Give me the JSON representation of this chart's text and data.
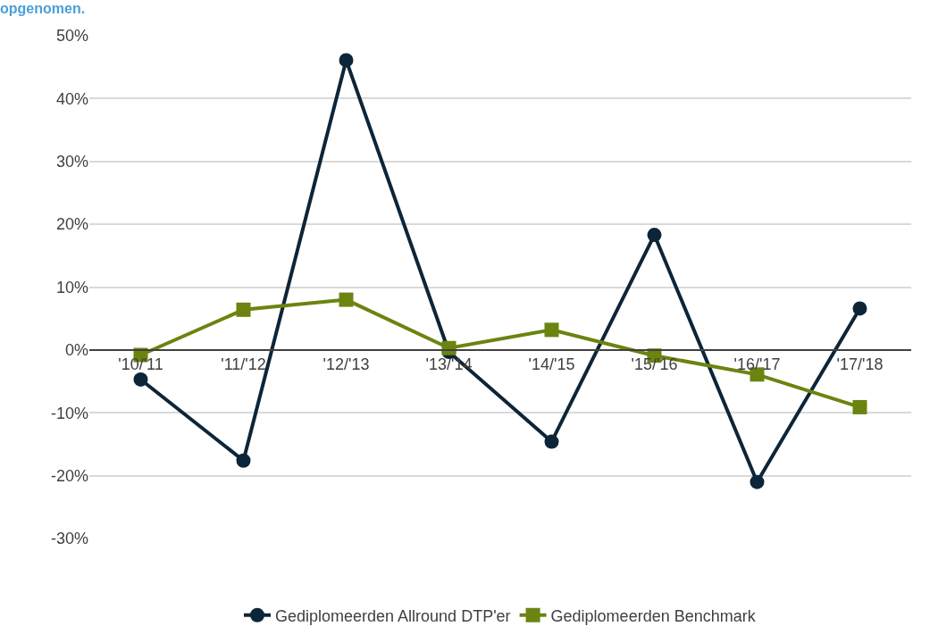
{
  "chart_data": {
    "type": "line",
    "title": "opgenomen.",
    "categories": [
      "'10/'11",
      "'11/'12",
      "'12/'13",
      "'13/'14",
      "'14/'15",
      "'15/'16",
      "'16/'17",
      "'17/'18"
    ],
    "series": [
      {
        "name": "Gediplomeerden Allround DTP'er",
        "color": "#0d2538",
        "marker": "circle",
        "values": [
          -4.7,
          -17.6,
          46.1,
          -0.3,
          -14.6,
          18.3,
          -21.0,
          6.6
        ]
      },
      {
        "name": "Gediplomeerden Benchmark",
        "color": "#6b8410",
        "marker": "square",
        "values": [
          -0.8,
          6.4,
          8.0,
          0.3,
          3.2,
          -0.9,
          -3.9,
          -9.1
        ]
      }
    ],
    "ylim": [
      -30,
      50
    ],
    "yticks": [
      {
        "value": -30,
        "label": "-30%"
      },
      {
        "value": -20,
        "label": "-20%"
      },
      {
        "value": -10,
        "label": "-10%"
      },
      {
        "value": 0,
        "label": "0%"
      },
      {
        "value": 10,
        "label": "10%"
      },
      {
        "value": 20,
        "label": "20%"
      },
      {
        "value": 30,
        "label": "30%"
      },
      {
        "value": 40,
        "label": "40%"
      },
      {
        "value": 50,
        "label": "50%"
      }
    ],
    "grid": "y",
    "legend": "bottom",
    "line_style": "solid"
  }
}
